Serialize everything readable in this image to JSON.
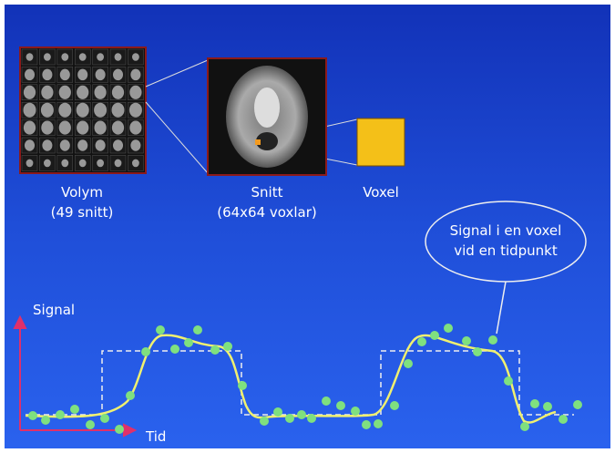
{
  "panels": [
    {
      "label": "Volym",
      "sublabel": "(49 snitt)"
    },
    {
      "label": "Snitt",
      "sublabel": "(64x64 voxlar)"
    },
    {
      "label": "Voxel"
    }
  ],
  "callout": {
    "lines": [
      "Signal i en voxel",
      "vid en tidpunkt"
    ]
  },
  "axes": {
    "y_label": "Signal",
    "x_label": "Tid"
  }
}
